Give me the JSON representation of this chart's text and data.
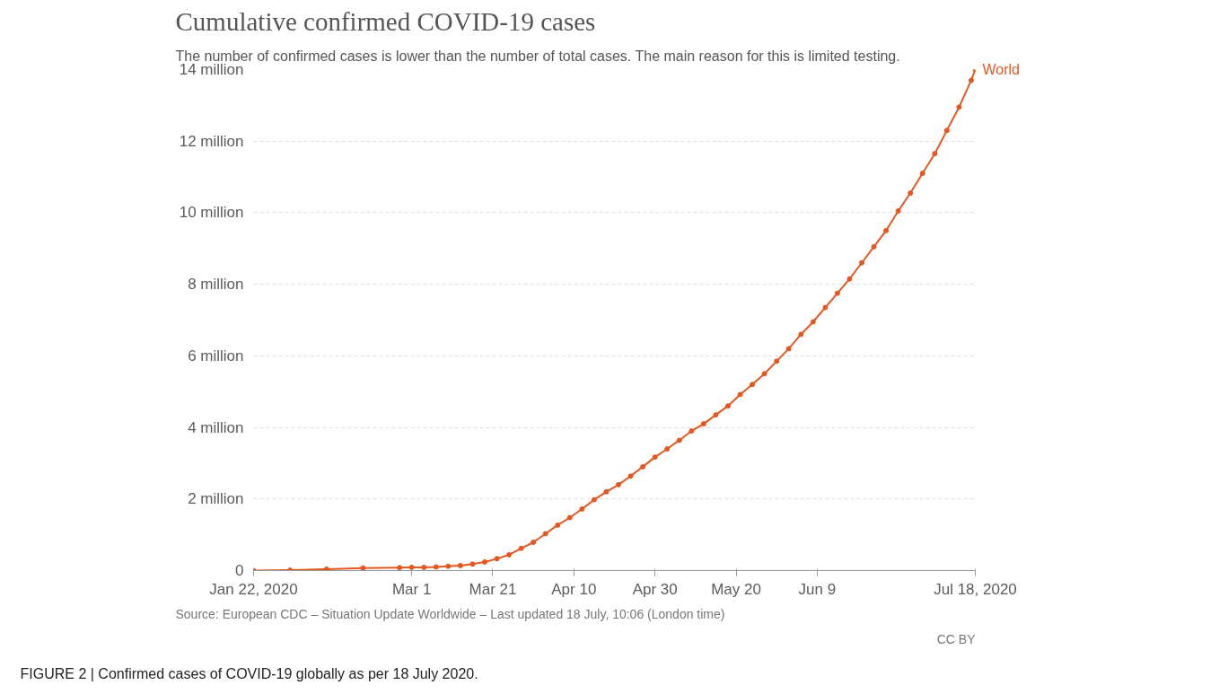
{
  "chart_data": {
    "type": "line",
    "title": "Cumulative confirmed COVID-19 cases",
    "subtitle": "The number of confirmed cases is lower than the number of total cases. The main reason for this is limited testing.",
    "annotations": [
      "Source: European CDC – Situation Update Worldwide – Last updated 18 July, 10:06 (London time)",
      "CC BY",
      "FIGURE 2 | Confirmed cases of COVID-19 globally as per 18 July 2020."
    ],
    "x": [
      "2020-01-22",
      "2020-01-31",
      "2020-02-09",
      "2020-02-18",
      "2020-02-27",
      "2020-03-01",
      "2020-03-04",
      "2020-03-07",
      "2020-03-10",
      "2020-03-13",
      "2020-03-16",
      "2020-03-19",
      "2020-03-22",
      "2020-03-25",
      "2020-03-28",
      "2020-03-31",
      "2020-04-03",
      "2020-04-06",
      "2020-04-09",
      "2020-04-12",
      "2020-04-15",
      "2020-04-18",
      "2020-04-21",
      "2020-04-24",
      "2020-04-27",
      "2020-04-30",
      "2020-05-03",
      "2020-05-06",
      "2020-05-09",
      "2020-05-12",
      "2020-05-15",
      "2020-05-18",
      "2020-05-21",
      "2020-05-24",
      "2020-05-27",
      "2020-05-30",
      "2020-06-02",
      "2020-06-05",
      "2020-06-08",
      "2020-06-11",
      "2020-06-14",
      "2020-06-17",
      "2020-06-20",
      "2020-06-23",
      "2020-06-26",
      "2020-06-29",
      "2020-07-02",
      "2020-07-05",
      "2020-07-08",
      "2020-07-11",
      "2020-07-14",
      "2020-07-17",
      "2020-07-18"
    ],
    "series": [
      {
        "name": "World",
        "color": "#e4571f",
        "values": [
          0,
          10000,
          40000,
          70000,
          80000,
          90000,
          90000,
          100000,
          120000,
          140000,
          180000,
          240000,
          330000,
          440000,
          620000,
          790000,
          1030000,
          1270000,
          1480000,
          1720000,
          1980000,
          2200000,
          2400000,
          2640000,
          2900000,
          3170000,
          3400000,
          3640000,
          3900000,
          4100000,
          4350000,
          4600000,
          4920000,
          5200000,
          5500000,
          5850000,
          6200000,
          6600000,
          6950000,
          7350000,
          7750000,
          8150000,
          8600000,
          9050000,
          9500000,
          10050000,
          10550000,
          11100000,
          11650000,
          12300000,
          12950000,
          13700000,
          14000000
        ]
      }
    ],
    "xlim": [
      "2020-01-22",
      "2020-07-18"
    ],
    "xticks": [
      {
        "value": "2020-01-22",
        "label": "Jan 22, 2020"
      },
      {
        "value": "2020-03-01",
        "label": "Mar 1"
      },
      {
        "value": "2020-03-21",
        "label": "Mar 21"
      },
      {
        "value": "2020-04-10",
        "label": "Apr 10"
      },
      {
        "value": "2020-04-30",
        "label": "Apr 30"
      },
      {
        "value": "2020-05-20",
        "label": "May 20"
      },
      {
        "value": "2020-06-09",
        "label": "Jun 9"
      },
      {
        "value": "2020-07-18",
        "label": "Jul 18, 2020"
      }
    ],
    "ylim": [
      0,
      14000000
    ],
    "yticks": [
      0,
      {
        "value": 2000000,
        "label": "2 million"
      },
      {
        "value": 4000000,
        "label": "4 million"
      },
      {
        "value": 6000000,
        "label": "6 million"
      },
      {
        "value": 8000000,
        "label": "8 million"
      },
      {
        "value": 10000000,
        "label": "10 million"
      },
      {
        "value": 12000000,
        "label": "12 million"
      },
      {
        "value": 14000000,
        "label": "14 million"
      }
    ],
    "grid": "y",
    "marker": "circle",
    "line_style": "solid"
  }
}
